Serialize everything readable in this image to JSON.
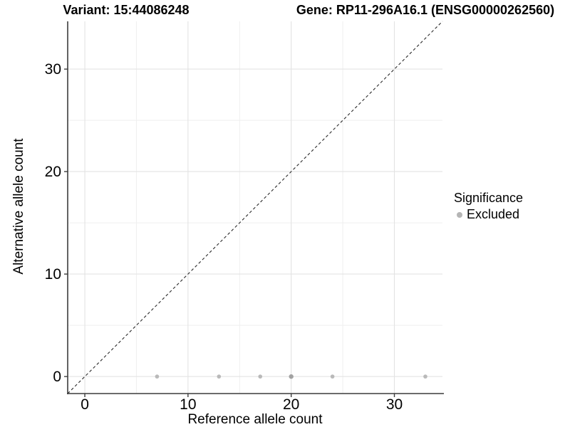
{
  "figure": {
    "title_left": "Variant: 15:44086248",
    "title_right": "Gene: RP11-296A16.1 (ENSG00000262560)"
  },
  "chart_data": {
    "type": "scatter",
    "xlabel": "Reference allele count",
    "ylabel": "Alternative allele count",
    "xlim": [
      -1.66,
      34.66
    ],
    "ylim": [
      -1.66,
      34.66
    ],
    "x_ticks": [
      0,
      10,
      20,
      30
    ],
    "y_ticks": [
      0,
      10,
      20,
      30
    ],
    "minor_gridlines": [
      5,
      15,
      25
    ],
    "grid": "on",
    "identity_line": {
      "style": "dashed",
      "slope": 1,
      "intercept": 0,
      "color": "#2b2b2b"
    },
    "series": [
      {
        "name": "Excluded",
        "color": "#b9b9b9",
        "points": [
          {
            "x": 7,
            "y": 0
          },
          {
            "x": 13,
            "y": 0
          },
          {
            "x": 17,
            "y": 0
          },
          {
            "x": 20,
            "y": 0,
            "color": "#a2a2a2",
            "overplotted": true
          },
          {
            "x": 24,
            "y": 0
          },
          {
            "x": 33,
            "y": 0
          }
        ]
      }
    ],
    "legend": {
      "title": "Significance",
      "position": "right",
      "items": [
        {
          "label": "Excluded",
          "color": "#b5b5b5"
        }
      ]
    }
  },
  "colors": {
    "grid_major": "#e3e3e3",
    "grid_minor": "#efefef",
    "axis_line": "#3c3c3c",
    "text": "#000000"
  }
}
